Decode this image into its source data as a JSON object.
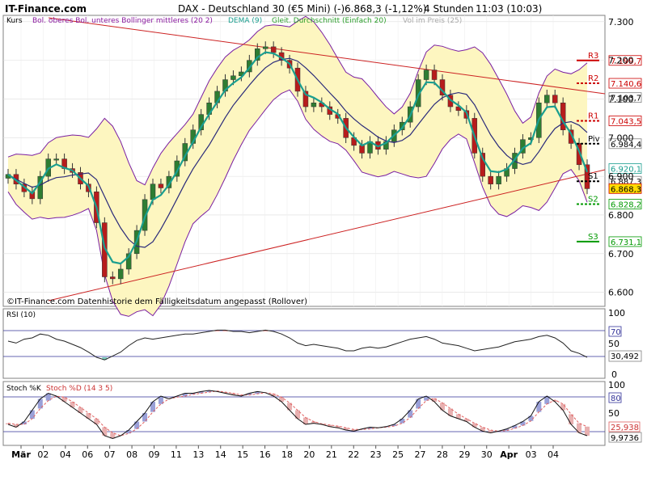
{
  "header": {
    "site": "IT-Finance.com",
    "title": "DAX - Deutschland 30 (€5 Mini) (-)",
    "quote": "6.868,3 (-1,12%)",
    "timeframe": "4 Stunden",
    "time": "11:03 (10:03)"
  },
  "colors": {
    "candle_up": "#2e7d32",
    "candle_down": "#b71c1c",
    "bollinger_fill": "#fdf6c0",
    "bollinger_line": "#7a1fa2",
    "dema": "#1a9e8f",
    "sma": "#2a2a7a",
    "trendline": "#cc2222",
    "rsi_line": "#222222",
    "pivot_red": "#cc0000",
    "pivot_green": "#009900"
  },
  "legend": {
    "kurs": "Kurs",
    "bollinger": "Bol. oberes Bol. unteres Bollinger mittleres (20 2)",
    "dema": "DEMA (9)",
    "sma": "Gleit. Durchschnitt (Einfach 20)",
    "volume": "Vol im Preis (25)"
  },
  "footer_note": "©IT-Finance.com Datenhistorie dem Fälligkeitsdatum angepasst (Rollover)",
  "chart_data": [
    {
      "type": "candlestick",
      "y_ticks": [
        "7.300",
        "7.200",
        "7.100",
        "7.000",
        "6.900",
        "6.800",
        "6.700",
        "6.600"
      ],
      "ylim": [
        6570,
        7310
      ],
      "x_ticks": [
        "Mär",
        "02",
        "04",
        "06",
        "07",
        "08",
        "09",
        "11",
        "13",
        "14",
        "15",
        "16",
        "18",
        "20",
        "21",
        "22",
        "23",
        "25",
        "27",
        "28",
        "29",
        "30",
        "Apr",
        "03",
        "04"
      ],
      "close": [
        6905,
        6880,
        6860,
        6842,
        6900,
        6945,
        6945,
        6920,
        6910,
        6880,
        6860,
        6780,
        6640,
        6635,
        6660,
        6700,
        6760,
        6840,
        6880,
        6870,
        6900,
        6940,
        6985,
        7020,
        7060,
        7090,
        7120,
        7150,
        7160,
        7170,
        7200,
        7230,
        7235,
        7220,
        7200,
        7180,
        7120,
        7080,
        7090,
        7080,
        7060,
        7050,
        7000,
        6980,
        6960,
        6990,
        6970,
        6990,
        7020,
        7040,
        7080,
        7150,
        7175,
        7150,
        7110,
        7080,
        7070,
        7050,
        6960,
        6900,
        6880,
        6900,
        6920,
        6960,
        6995,
        7000,
        7090,
        7110,
        7090,
        7020,
        6985,
        6930,
        6868
      ],
      "pivot_levels": [
        {
          "label": "R3",
          "value": "7.199,7"
        },
        {
          "label": "R2",
          "value": "7.140,6"
        },
        {
          "label": "",
          "value": "7.103,7"
        },
        {
          "label": "R1",
          "value": "7.043,5"
        },
        {
          "label": "Piv",
          "value": "6.984,4"
        },
        {
          "label": "",
          "value": "6.920,1"
        },
        {
          "label": "S1",
          "value": "6.887,3"
        },
        {
          "label": "",
          "value": "6.868,3"
        },
        {
          "label": "S2",
          "value": "6.828,2"
        },
        {
          "label": "S3",
          "value": "6.731,1"
        }
      ]
    },
    {
      "type": "line",
      "title": "RSI (10)",
      "y_ticks": [
        "100",
        "50",
        "0"
      ],
      "levels": [
        "70",
        "30,492"
      ],
      "values": [
        55,
        52,
        58,
        60,
        66,
        64,
        58,
        55,
        50,
        45,
        38,
        30,
        26,
        32,
        38,
        48,
        56,
        60,
        58,
        60,
        62,
        64,
        66,
        66,
        68,
        70,
        72,
        72,
        70,
        70,
        68,
        70,
        72,
        70,
        66,
        60,
        52,
        48,
        50,
        48,
        46,
        44,
        40,
        40,
        44,
        46,
        44,
        46,
        50,
        54,
        58,
        60,
        62,
        58,
        52,
        50,
        48,
        44,
        40,
        42,
        44,
        46,
        50,
        54,
        56,
        58,
        62,
        64,
        60,
        52,
        40,
        36,
        30
      ]
    },
    {
      "type": "line",
      "title": "Stoch %K",
      "series_names": [
        "Stoch %K",
        "Stoch %D (14 3 5)"
      ],
      "y_ticks": [
        "100",
        "50",
        "0"
      ],
      "levels": [
        "80",
        "25,938",
        "9,9736"
      ],
      "k": [
        30,
        25,
        35,
        55,
        75,
        85,
        80,
        70,
        60,
        50,
        40,
        30,
        10,
        5,
        10,
        20,
        35,
        50,
        70,
        80,
        75,
        80,
        85,
        85,
        88,
        90,
        88,
        85,
        82,
        80,
        85,
        88,
        86,
        80,
        70,
        55,
        40,
        30,
        32,
        30,
        26,
        24,
        20,
        18,
        22,
        25,
        24,
        26,
        30,
        40,
        55,
        75,
        80,
        70,
        55,
        45,
        40,
        35,
        25,
        18,
        15,
        18,
        22,
        28,
        35,
        45,
        70,
        80,
        70,
        55,
        30,
        15,
        10
      ],
      "d": [
        32,
        30,
        30,
        40,
        58,
        72,
        80,
        78,
        70,
        60,
        50,
        40,
        25,
        15,
        10,
        14,
        22,
        35,
        52,
        66,
        75,
        78,
        80,
        83,
        85,
        87,
        89,
        87,
        85,
        82,
        82,
        84,
        86,
        84,
        78,
        68,
        55,
        42,
        35,
        31,
        29,
        27,
        24,
        21,
        21,
        22,
        24,
        25,
        27,
        32,
        42,
        58,
        72,
        76,
        68,
        58,
        48,
        40,
        32,
        25,
        20,
        18,
        19,
        23,
        28,
        36,
        52,
        66,
        73,
        66,
        48,
        32,
        26
      ]
    }
  ]
}
